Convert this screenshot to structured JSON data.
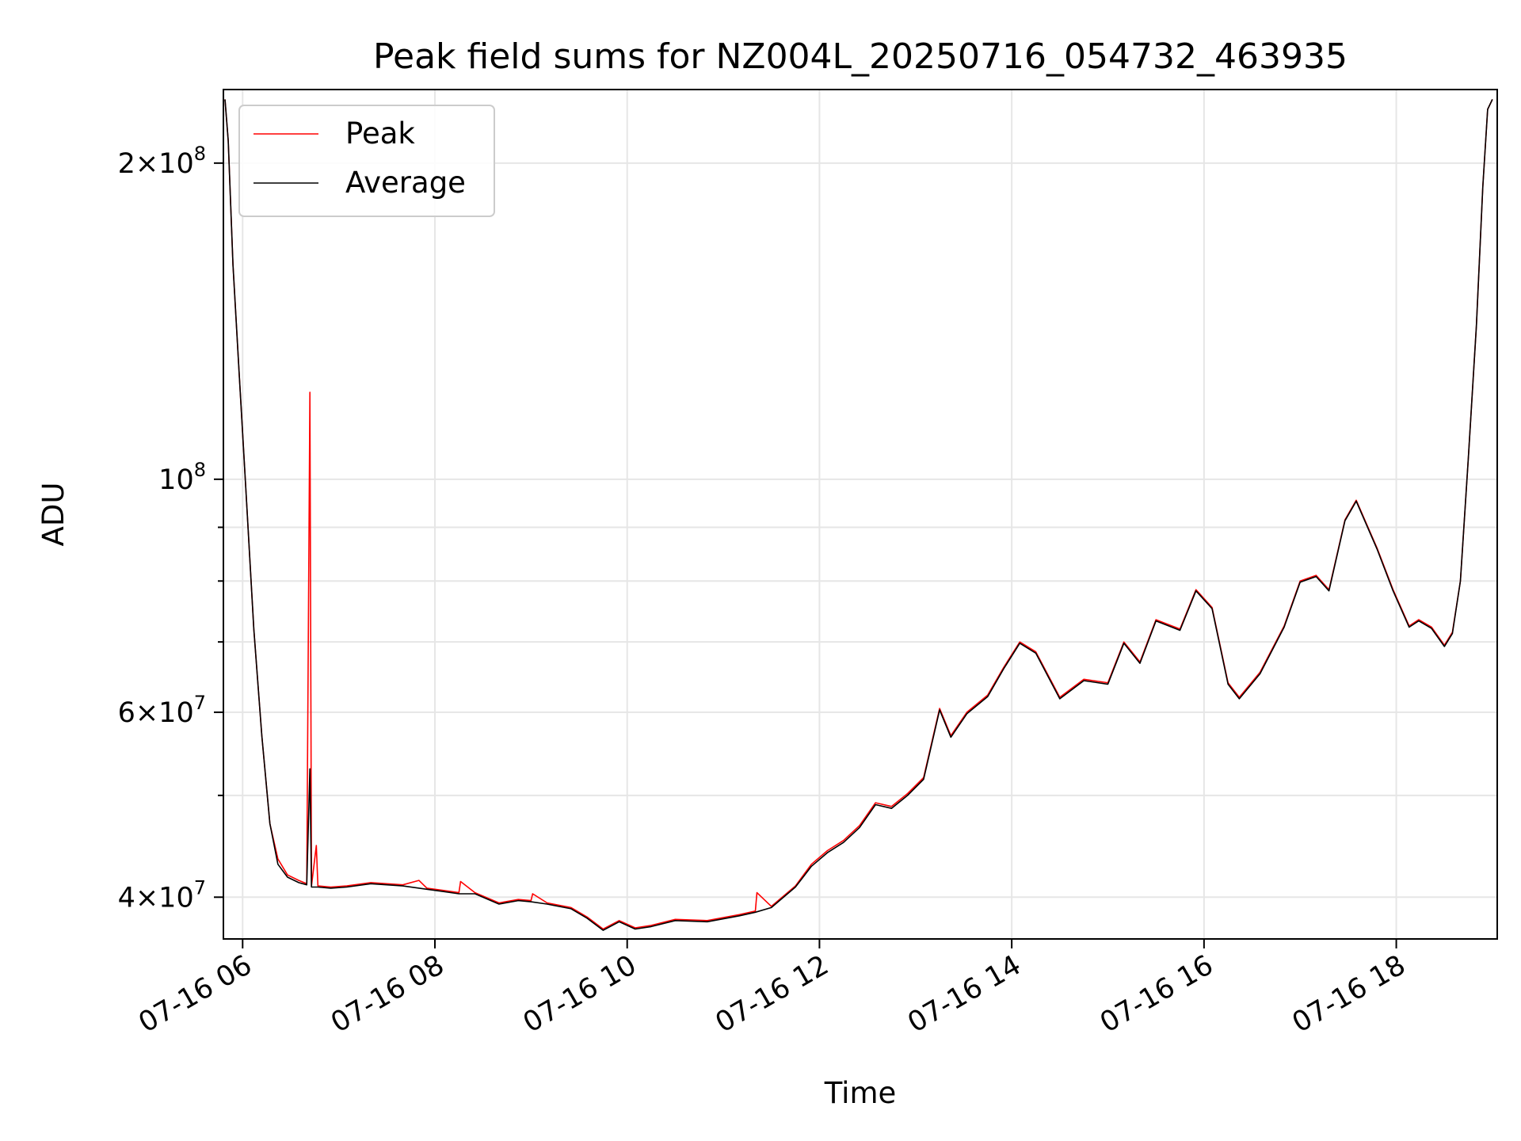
{
  "chart_data": {
    "type": "line",
    "title": "Peak field sums for NZ004L_20250716_054732_463935",
    "xlabel": "Time",
    "ylabel": "ADU",
    "x_range": [
      "2025-07-16 05:48",
      "2025-07-16 19:03"
    ],
    "y_scale": "log",
    "ylim": [
      36500000,
      235000000
    ],
    "grid": true,
    "legend_position": "upper left",
    "x_ticks": [
      {
        "value": "2025-07-16 06:00",
        "label": "07-16 06"
      },
      {
        "value": "2025-07-16 08:00",
        "label": "07-16 08"
      },
      {
        "value": "2025-07-16 10:00",
        "label": "07-16 10"
      },
      {
        "value": "2025-07-16 12:00",
        "label": "07-16 12"
      },
      {
        "value": "2025-07-16 14:00",
        "label": "07-16 14"
      },
      {
        "value": "2025-07-16 16:00",
        "label": "07-16 16"
      },
      {
        "value": "2025-07-16 18:00",
        "label": "07-16 18"
      }
    ],
    "y_ticks": [
      {
        "value": 40000000,
        "base": "4",
        "exp": "7"
      },
      {
        "value": 60000000,
        "base": "6",
        "exp": "7"
      },
      {
        "value": 100000000,
        "base": "",
        "exp": "8"
      },
      {
        "value": 200000000,
        "base": "2",
        "exp": "8"
      }
    ],
    "y_minor_ticks": [
      50000000,
      70000000,
      80000000,
      90000000
    ],
    "series": [
      {
        "name": "Peak",
        "color": "#ff0000",
        "points": [
          [
            "2025-07-16 05:49",
            230000000
          ],
          [
            "2025-07-16 05:51",
            210000000
          ],
          [
            "2025-07-16 05:54",
            160000000
          ],
          [
            "2025-07-16 05:58",
            125000000
          ],
          [
            "2025-07-16 06:02",
            98000000
          ],
          [
            "2025-07-16 06:07",
            72000000
          ],
          [
            "2025-07-16 06:12",
            57000000
          ],
          [
            "2025-07-16 06:17",
            47000000
          ],
          [
            "2025-07-16 06:22",
            43500000
          ],
          [
            "2025-07-16 06:28",
            42000000
          ],
          [
            "2025-07-16 06:35",
            41500000
          ],
          [
            "2025-07-16 06:40",
            41200000
          ],
          [
            "2025-07-16 06:42",
            121000000
          ],
          [
            "2025-07-16 06:43",
            41000000
          ],
          [
            "2025-07-16 06:46",
            44800000
          ],
          [
            "2025-07-16 06:47",
            41000000
          ],
          [
            "2025-07-16 06:55",
            40900000
          ],
          [
            "2025-07-16 07:05",
            41000000
          ],
          [
            "2025-07-16 07:20",
            41300000
          ],
          [
            "2025-07-16 07:40",
            41100000
          ],
          [
            "2025-07-16 07:50",
            41500000
          ],
          [
            "2025-07-16 07:55",
            40800000
          ],
          [
            "2025-07-16 08:05",
            40600000
          ],
          [
            "2025-07-16 08:15",
            40400000
          ],
          [
            "2025-07-16 08:16",
            41400000
          ],
          [
            "2025-07-16 08:25",
            40400000
          ],
          [
            "2025-07-16 08:40",
            39500000
          ],
          [
            "2025-07-16 08:52",
            39800000
          ],
          [
            "2025-07-16 09:00",
            39700000
          ],
          [
            "2025-07-16 09:01",
            40300000
          ],
          [
            "2025-07-16 09:10",
            39500000
          ],
          [
            "2025-07-16 09:25",
            39100000
          ],
          [
            "2025-07-16 09:35",
            38300000
          ],
          [
            "2025-07-16 09:45",
            37300000
          ],
          [
            "2025-07-16 09:55",
            38000000
          ],
          [
            "2025-07-16 10:05",
            37400000
          ],
          [
            "2025-07-16 10:15",
            37600000
          ],
          [
            "2025-07-16 10:30",
            38100000
          ],
          [
            "2025-07-16 10:50",
            38000000
          ],
          [
            "2025-07-16 11:10",
            38500000
          ],
          [
            "2025-07-16 11:20",
            38800000
          ],
          [
            "2025-07-16 11:21",
            40400000
          ],
          [
            "2025-07-16 11:30",
            39200000
          ],
          [
            "2025-07-16 11:45",
            41000000
          ],
          [
            "2025-07-16 11:55",
            43000000
          ],
          [
            "2025-07-16 12:05",
            44300000
          ],
          [
            "2025-07-16 12:15",
            45300000
          ],
          [
            "2025-07-16 12:25",
            46800000
          ],
          [
            "2025-07-16 12:35",
            49200000
          ],
          [
            "2025-07-16 12:45",
            48800000
          ],
          [
            "2025-07-16 12:55",
            50200000
          ],
          [
            "2025-07-16 13:05",
            52000000
          ],
          [
            "2025-07-16 13:15",
            60500000
          ],
          [
            "2025-07-16 13:22",
            57000000
          ],
          [
            "2025-07-16 13:32",
            60000000
          ],
          [
            "2025-07-16 13:45",
            62300000
          ],
          [
            "2025-07-16 13:55",
            66200000
          ],
          [
            "2025-07-16 14:05",
            70000000
          ],
          [
            "2025-07-16 14:15",
            68500000
          ],
          [
            "2025-07-16 14:30",
            62000000
          ],
          [
            "2025-07-16 14:45",
            64500000
          ],
          [
            "2025-07-16 15:00",
            64000000
          ],
          [
            "2025-07-16 15:10",
            70000000
          ],
          [
            "2025-07-16 15:20",
            67000000
          ],
          [
            "2025-07-16 15:30",
            73500000
          ],
          [
            "2025-07-16 15:45",
            72000000
          ],
          [
            "2025-07-16 15:55",
            78500000
          ],
          [
            "2025-07-16 16:05",
            75500000
          ],
          [
            "2025-07-16 16:15",
            64000000
          ],
          [
            "2025-07-16 16:22",
            62000000
          ],
          [
            "2025-07-16 16:35",
            65500000
          ],
          [
            "2025-07-16 16:50",
            72500000
          ],
          [
            "2025-07-16 17:00",
            80000000
          ],
          [
            "2025-07-16 17:10",
            81000000
          ],
          [
            "2025-07-16 17:18",
            78500000
          ],
          [
            "2025-07-16 17:28",
            91500000
          ],
          [
            "2025-07-16 17:35",
            95500000
          ],
          [
            "2025-07-16 17:48",
            86000000
          ],
          [
            "2025-07-16 17:58",
            78500000
          ],
          [
            "2025-07-16 18:08",
            72500000
          ],
          [
            "2025-07-16 18:14",
            73500000
          ],
          [
            "2025-07-16 18:22",
            72300000
          ],
          [
            "2025-07-16 18:30",
            69500000
          ],
          [
            "2025-07-16 18:35",
            71500000
          ],
          [
            "2025-07-16 18:40",
            80000000
          ],
          [
            "2025-07-16 18:45",
            105000000
          ],
          [
            "2025-07-16 18:50",
            140000000
          ],
          [
            "2025-07-16 18:54",
            190000000
          ],
          [
            "2025-07-16 18:57",
            225000000
          ],
          [
            "2025-07-16 19:00",
            230000000
          ]
        ]
      },
      {
        "name": "Average",
        "color": "#000000",
        "points": [
          [
            "2025-07-16 05:49",
            230000000
          ],
          [
            "2025-07-16 05:51",
            210000000
          ],
          [
            "2025-07-16 05:54",
            160000000
          ],
          [
            "2025-07-16 05:58",
            125000000
          ],
          [
            "2025-07-16 06:02",
            98000000
          ],
          [
            "2025-07-16 06:07",
            72000000
          ],
          [
            "2025-07-16 06:12",
            57000000
          ],
          [
            "2025-07-16 06:17",
            47000000
          ],
          [
            "2025-07-16 06:22",
            43000000
          ],
          [
            "2025-07-16 06:28",
            41800000
          ],
          [
            "2025-07-16 06:35",
            41300000
          ],
          [
            "2025-07-16 06:40",
            41100000
          ],
          [
            "2025-07-16 06:42",
            53000000
          ],
          [
            "2025-07-16 06:43",
            40900000
          ],
          [
            "2025-07-16 06:47",
            40900000
          ],
          [
            "2025-07-16 06:55",
            40800000
          ],
          [
            "2025-07-16 07:05",
            40900000
          ],
          [
            "2025-07-16 07:20",
            41200000
          ],
          [
            "2025-07-16 07:40",
            41000000
          ],
          [
            "2025-07-16 07:55",
            40700000
          ],
          [
            "2025-07-16 08:05",
            40500000
          ],
          [
            "2025-07-16 08:15",
            40300000
          ],
          [
            "2025-07-16 08:25",
            40300000
          ],
          [
            "2025-07-16 08:40",
            39400000
          ],
          [
            "2025-07-16 08:52",
            39700000
          ],
          [
            "2025-07-16 09:00",
            39600000
          ],
          [
            "2025-07-16 09:10",
            39400000
          ],
          [
            "2025-07-16 09:25",
            39000000
          ],
          [
            "2025-07-16 09:35",
            38200000
          ],
          [
            "2025-07-16 09:45",
            37200000
          ],
          [
            "2025-07-16 09:55",
            37900000
          ],
          [
            "2025-07-16 10:05",
            37300000
          ],
          [
            "2025-07-16 10:15",
            37500000
          ],
          [
            "2025-07-16 10:30",
            38000000
          ],
          [
            "2025-07-16 10:50",
            37900000
          ],
          [
            "2025-07-16 11:10",
            38400000
          ],
          [
            "2025-07-16 11:20",
            38700000
          ],
          [
            "2025-07-16 11:30",
            39100000
          ],
          [
            "2025-07-16 11:45",
            40900000
          ],
          [
            "2025-07-16 11:55",
            42800000
          ],
          [
            "2025-07-16 12:05",
            44100000
          ],
          [
            "2025-07-16 12:15",
            45100000
          ],
          [
            "2025-07-16 12:25",
            46600000
          ],
          [
            "2025-07-16 12:35",
            49000000
          ],
          [
            "2025-07-16 12:45",
            48600000
          ],
          [
            "2025-07-16 12:55",
            50000000
          ],
          [
            "2025-07-16 13:05",
            51800000
          ],
          [
            "2025-07-16 13:15",
            60300000
          ],
          [
            "2025-07-16 13:22",
            56800000
          ],
          [
            "2025-07-16 13:32",
            59800000
          ],
          [
            "2025-07-16 13:45",
            62100000
          ],
          [
            "2025-07-16 13:55",
            66000000
          ],
          [
            "2025-07-16 14:05",
            69800000
          ],
          [
            "2025-07-16 14:15",
            68300000
          ],
          [
            "2025-07-16 14:30",
            61800000
          ],
          [
            "2025-07-16 14:45",
            64300000
          ],
          [
            "2025-07-16 15:00",
            63800000
          ],
          [
            "2025-07-16 15:10",
            69800000
          ],
          [
            "2025-07-16 15:20",
            66800000
          ],
          [
            "2025-07-16 15:30",
            73300000
          ],
          [
            "2025-07-16 15:45",
            71800000
          ],
          [
            "2025-07-16 15:55",
            78300000
          ],
          [
            "2025-07-16 16:05",
            75300000
          ],
          [
            "2025-07-16 16:15",
            63800000
          ],
          [
            "2025-07-16 16:22",
            61800000
          ],
          [
            "2025-07-16 16:35",
            65300000
          ],
          [
            "2025-07-16 16:50",
            72300000
          ],
          [
            "2025-07-16 17:00",
            79800000
          ],
          [
            "2025-07-16 17:10",
            80800000
          ],
          [
            "2025-07-16 17:18",
            78300000
          ],
          [
            "2025-07-16 17:28",
            91300000
          ],
          [
            "2025-07-16 17:35",
            95300000
          ],
          [
            "2025-07-16 17:48",
            85800000
          ],
          [
            "2025-07-16 17:58",
            78300000
          ],
          [
            "2025-07-16 18:08",
            72300000
          ],
          [
            "2025-07-16 18:14",
            73300000
          ],
          [
            "2025-07-16 18:22",
            72100000
          ],
          [
            "2025-07-16 18:30",
            69300000
          ],
          [
            "2025-07-16 18:35",
            71300000
          ],
          [
            "2025-07-16 18:40",
            80000000
          ],
          [
            "2025-07-16 18:45",
            105000000
          ],
          [
            "2025-07-16 18:50",
            140000000
          ],
          [
            "2025-07-16 18:54",
            190000000
          ],
          [
            "2025-07-16 18:57",
            225000000
          ],
          [
            "2025-07-16 19:00",
            230000000
          ]
        ]
      }
    ]
  }
}
